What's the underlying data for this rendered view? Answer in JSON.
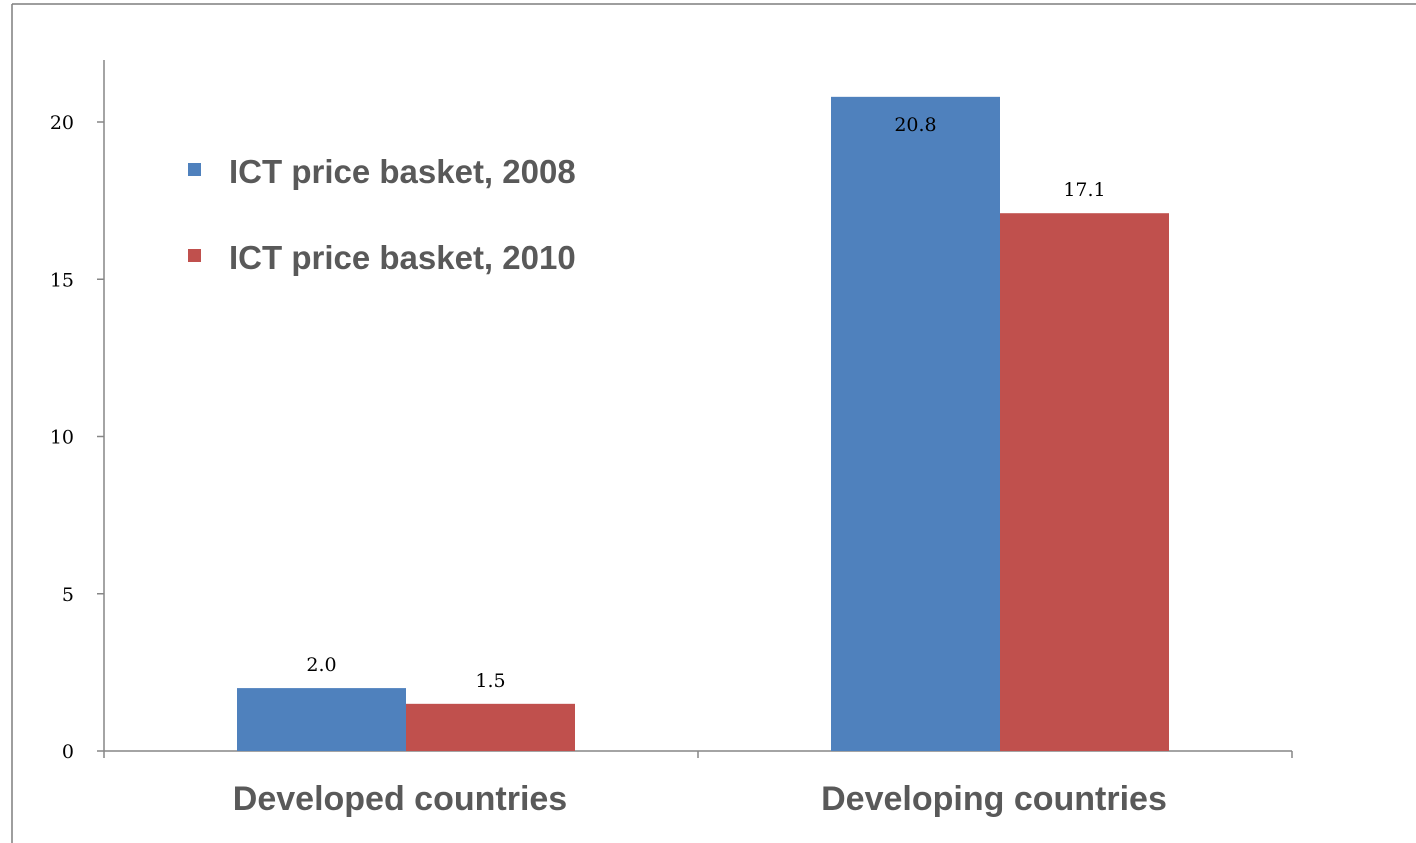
{
  "chart_data": {
    "type": "bar",
    "categories": [
      "Developed countries",
      "Developing countries"
    ],
    "series": [
      {
        "name": "ICT price basket, 2008",
        "color": "#4F81BD",
        "values": [
          2.0,
          20.8
        ]
      },
      {
        "name": "ICT price basket, 2010",
        "color": "#C0504D",
        "values": [
          1.5,
          17.1
        ]
      }
    ],
    "data_labels": [
      [
        "2.0",
        "20.8"
      ],
      [
        "1.5",
        "17.1"
      ]
    ],
    "yticks": [
      0,
      5,
      10,
      15,
      20
    ],
    "ylim": [
      0,
      22
    ],
    "legend_position": "top-left",
    "grid": false
  }
}
